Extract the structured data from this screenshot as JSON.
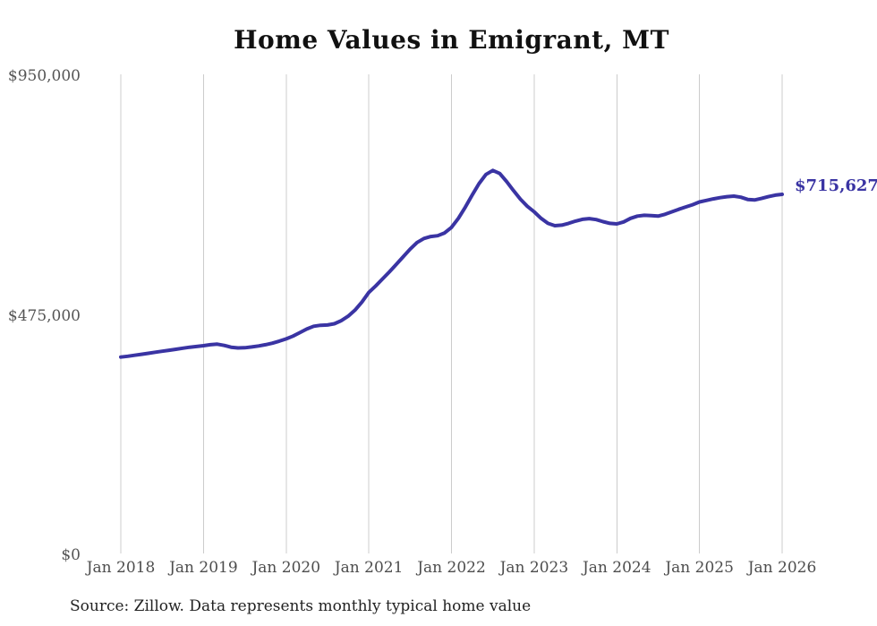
{
  "chart": {
    "title": "Home Values in Emigrant, MT",
    "latest_value_label": "$715,627",
    "source_note": "Source: Zillow. Data represents monthly typical home value"
  },
  "chart_data": {
    "type": "line",
    "title": "Home Values in Emigrant, MT",
    "xlabel": "",
    "ylabel": "",
    "ylim": [
      0,
      950000
    ],
    "grid": "vertical-only",
    "legend": "none",
    "frequency": "monthly",
    "x_start": "Jan 2018",
    "x_end": "Jan 2026",
    "x_tick_labels": [
      "Jan 2018",
      "Jan 2019",
      "Jan 2020",
      "Jan 2021",
      "Jan 2022",
      "Jan 2023",
      "Jan 2024",
      "Jan 2025",
      "Jan 2026"
    ],
    "y_ticks": [
      {
        "label": "$0",
        "value": 0
      },
      {
        "label": "$475,000",
        "value": 475000
      },
      {
        "label": "$950,000",
        "value": 950000
      }
    ],
    "values_monthly": [
      393000,
      394500,
      396500,
      398500,
      400500,
      402500,
      404500,
      406500,
      408500,
      410500,
      412500,
      414000,
      415500,
      417500,
      418500,
      416000,
      412500,
      411000,
      411500,
      413000,
      415000,
      417500,
      420500,
      424500,
      429000,
      434500,
      441500,
      448500,
      454000,
      456000,
      456500,
      459000,
      465000,
      474000,
      486000,
      502000,
      521000,
      534000,
      548000,
      562000,
      577000,
      592000,
      607000,
      620000,
      628000,
      632000,
      633500,
      639000,
      650000,
      668000,
      690000,
      714000,
      737000,
      755000,
      763000,
      757000,
      741000,
      723000,
      706000,
      692000,
      681000,
      668000,
      658000,
      653500,
      654500,
      658000,
      662500,
      666000,
      667500,
      665500,
      661500,
      658000,
      657000,
      661000,
      668000,
      672500,
      674000,
      673500,
      672500,
      676000,
      681000,
      686000,
      690500,
      695000,
      700500,
      703500,
      706500,
      709000,
      711000,
      712000,
      710000,
      705500,
      704500,
      707500,
      711000,
      714000,
      715627
    ],
    "latest_value": 715627,
    "latest_value_label": "$715,627",
    "source_note": "Source: Zillow. Data represents monthly typical home value",
    "colors": {
      "line": "#3a34a3",
      "grid": "#cccccc",
      "axis_text": "#4d4d4d",
      "title_text": "#111111",
      "value_label": "#3a34a3"
    }
  }
}
